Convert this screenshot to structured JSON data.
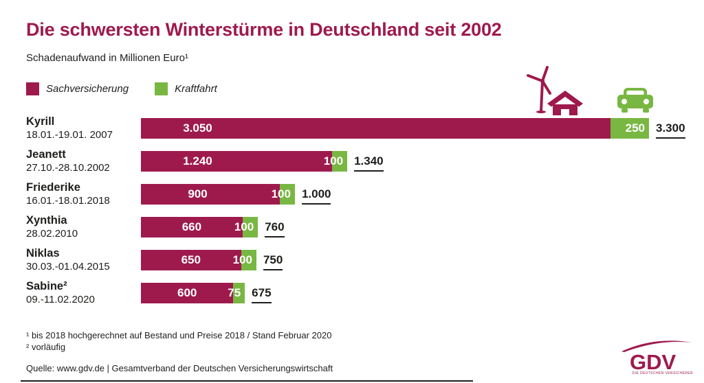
{
  "title": "Die schwersten Winterstürme in Deutschland seit 2002",
  "subtitle": "Schadenaufwand in Millionen Euro¹",
  "colors": {
    "maroon": "#9e1a4d",
    "green": "#79b743",
    "text": "#1d1d1b"
  },
  "legend": {
    "items": [
      {
        "label": "Sachversicherung",
        "color": "#9e1a4d"
      },
      {
        "label": "Kraftfahrt",
        "color": "#79b743"
      }
    ]
  },
  "chart_data": {
    "type": "bar",
    "orientation": "horizontal",
    "title": "Die schwersten Winterstürme in Deutschland seit 2002",
    "unit_label": "Schadenaufwand in Millionen Euro",
    "legend_position": "top-left",
    "xlim": [
      0,
      3300
    ],
    "series_names": [
      "Sachversicherung",
      "Kraftfahrt"
    ],
    "series": [
      {
        "name": "Sachversicherung",
        "values": [
          3050,
          1240,
          900,
          660,
          650,
          600
        ]
      },
      {
        "name": "Kraftfahrt",
        "values": [
          250,
          100,
          100,
          100,
          100,
          75
        ]
      }
    ],
    "categories": [
      "Kyrill",
      "Jeanett",
      "Friederike",
      "Xynthia",
      "Niklas",
      "Sabine²"
    ],
    "rows": [
      {
        "name": "Kyrill",
        "date": "18.01.-19.01. 2007",
        "sach": 3050,
        "kraft": 250,
        "total": 3300,
        "sach_label": "3.050",
        "kraft_label": "250",
        "total_label": "3.300"
      },
      {
        "name": "Jeanett",
        "date": "27.10.-28.10.2002",
        "sach": 1240,
        "kraft": 100,
        "total": 1340,
        "sach_label": "1.240",
        "kraft_label": "100",
        "total_label": "1.340"
      },
      {
        "name": "Friederike",
        "date": "16.01.-18.01.2018",
        "sach": 900,
        "kraft": 100,
        "total": 1000,
        "sach_label": "900",
        "kraft_label": "100",
        "total_label": "1.000"
      },
      {
        "name": "Xynthia",
        "date": "28.02.2010",
        "sach": 660,
        "kraft": 100,
        "total": 760,
        "sach_label": "660",
        "kraft_label": "100",
        "total_label": "760"
      },
      {
        "name": "Niklas",
        "date": "30.03.-01.04.2015",
        "sach": 650,
        "kraft": 100,
        "total": 750,
        "sach_label": "650",
        "kraft_label": "100",
        "total_label": "750"
      },
      {
        "name": "Sabine²",
        "date": "09.-11.02.2020",
        "sach": 600,
        "kraft": 75,
        "total": 675,
        "sach_label": "600",
        "kraft_label": "75",
        "total_label": "675"
      }
    ]
  },
  "footnotes": {
    "line1": "¹ bis 2018 hochgerechnet auf Bestand und Preise 2018 / Stand Februar 2020",
    "line2": "² vorläufig"
  },
  "source": "Quelle: www.gdv.de | Gesamtverband der Deutschen Versicherungswirtschaft",
  "logo": {
    "text": "GDV",
    "tagline": "DIE DEUTSCHEN VERSICHERER"
  }
}
